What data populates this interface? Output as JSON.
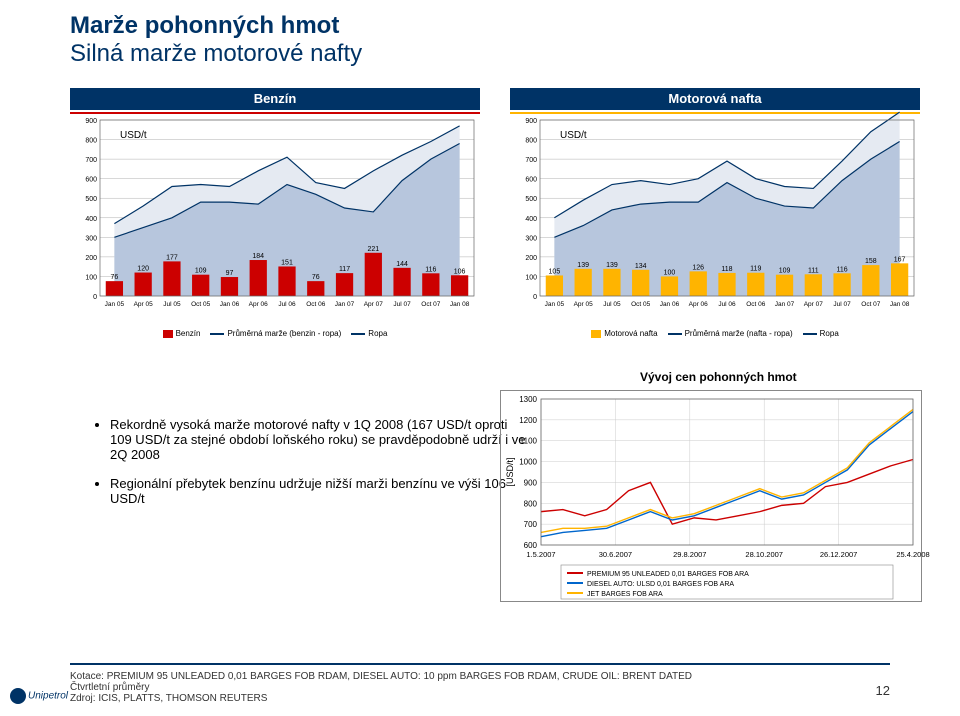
{
  "title1": "Marže pohonných hmot",
  "title2": "Silná marže motorové nafty",
  "chart_benzin": {
    "type": "combo-bar-area",
    "title": "Benzín",
    "header_bg": "#003366",
    "usdt_label": "USD/t",
    "ylim": [
      0,
      900
    ],
    "ytick_step": 100,
    "categories": [
      "Jan 05",
      "Apr 05",
      "Jul 05",
      "Oct 05",
      "Jan 06",
      "Apr 06",
      "Jul 06",
      "Oct 06",
      "Jan 07",
      "Apr 07",
      "Jul 07",
      "Oct 07",
      "Jan 08"
    ],
    "bar_values": [
      76,
      120,
      177,
      109,
      97,
      184,
      151,
      76,
      117,
      221,
      144,
      116,
      106
    ],
    "bar_color": "#cc0000",
    "area_top": [
      370,
      460,
      560,
      570,
      560,
      640,
      710,
      580,
      550,
      640,
      720,
      790,
      870
    ],
    "area_bottom": [
      300,
      350,
      400,
      480,
      480,
      470,
      570,
      520,
      450,
      430,
      590,
      700,
      780
    ],
    "area_top_color": "#e5eaf2",
    "area_bottom_color": "#b7c6dd",
    "line_ropa_color": "#003366",
    "line_marze_color": "#003366",
    "gridline_color": "#b0b0b0",
    "bg": "#ffffff",
    "legend": [
      {
        "type": "sw",
        "color": "#cc0000",
        "label": "Benzín"
      },
      {
        "type": "ln",
        "color": "#003366",
        "label": "Průměrná marže (benzin - ropa)"
      },
      {
        "type": "ln",
        "color": "#003366",
        "label": "Ropa"
      }
    ]
  },
  "chart_nafta": {
    "type": "combo-bar-area",
    "title": "Motorová nafta",
    "header_bg": "#003366",
    "usdt_label": "USD/t",
    "ylim": [
      0,
      900
    ],
    "ytick_step": 100,
    "categories": [
      "Jan 05",
      "Apr 05",
      "Jul 05",
      "Oct 05",
      "Jan 06",
      "Apr 06",
      "Jul 06",
      "Oct 06",
      "Jan 07",
      "Apr 07",
      "Jul 07",
      "Oct 07",
      "Jan 08"
    ],
    "bar_values": [
      105,
      139,
      139,
      134,
      100,
      126,
      118,
      119,
      109,
      111,
      116,
      158,
      167
    ],
    "bar_color": "#ffb400",
    "area_top": [
      400,
      490,
      570,
      590,
      570,
      600,
      690,
      600,
      560,
      550,
      690,
      840,
      940
    ],
    "area_bottom": [
      300,
      360,
      440,
      470,
      480,
      480,
      580,
      500,
      460,
      450,
      590,
      700,
      790
    ],
    "area_top_color": "#e5eaf2",
    "area_bottom_color": "#b7c6dd",
    "line_ropa_color": "#003366",
    "line_marze_color": "#003366",
    "gridline_color": "#b0b0b0",
    "bg": "#ffffff",
    "legend": [
      {
        "type": "sw",
        "color": "#ffb400",
        "label": "Motorová nafta"
      },
      {
        "type": "ln",
        "color": "#003366",
        "label": "Průměrná marže (nafta - ropa)"
      },
      {
        "type": "ln",
        "color": "#003366",
        "label": "Ropa"
      }
    ]
  },
  "bullets": [
    "Rekordně vysoká marže motorové nafty v 1Q 2008 (167 USD/t oproti 109 USD/t za stejné období loňského roku) se pravděpodobně udrží i ve 2Q 2008",
    "Regionální přebytek benzínu udržuje nižší marži benzínu ve výši 106 USD/t"
  ],
  "vyvoj": {
    "title": "Vývoj cen pohonných hmot",
    "ylim": [
      600,
      1300
    ],
    "ytick_step": 100,
    "ylabel": "[USD/t]",
    "categories": [
      "1.5.2007",
      "30.6.2007",
      "29.8.2007",
      "28.10.2007",
      "26.12.2007",
      "25.4.2008"
    ],
    "series": [
      {
        "label": "PREMIUM 95 UNLEADED 0,01 BARGES FOB ARA",
        "color": "#cc0000",
        "values": [
          760,
          770,
          740,
          770,
          860,
          900,
          700,
          730,
          720,
          740,
          760,
          790,
          800,
          880,
          900,
          940,
          980,
          1010
        ]
      },
      {
        "label": "DIESEL AUTO: ULSD 0,01 BARGES FOB ARA",
        "color": "#0066cc",
        "values": [
          640,
          660,
          670,
          680,
          720,
          760,
          720,
          740,
          780,
          820,
          860,
          820,
          840,
          900,
          960,
          1080,
          1160,
          1240
        ]
      },
      {
        "label": "JET BARGES FOB ARA",
        "color": "#ffb400",
        "values": [
          660,
          680,
          680,
          690,
          730,
          770,
          730,
          750,
          790,
          830,
          870,
          830,
          850,
          910,
          970,
          1090,
          1170,
          1250
        ]
      }
    ],
    "border_color": "#666666",
    "grid_color": "#cccccc",
    "bg": "#ffffff"
  },
  "footer": {
    "line1": "Kotace: PREMIUM 95 UNLEADED 0,01 BARGES FOB RDAM, DIESEL AUTO: 10 ppm BARGES FOB RDAM, CRUDE OIL: BRENT DATED",
    "line2": "Čtvrtletní průměry",
    "line3": "Zdroj: ICIS, PLATTS, THOMSON REUTERS",
    "page": "12",
    "logo": "Unipetrol"
  }
}
